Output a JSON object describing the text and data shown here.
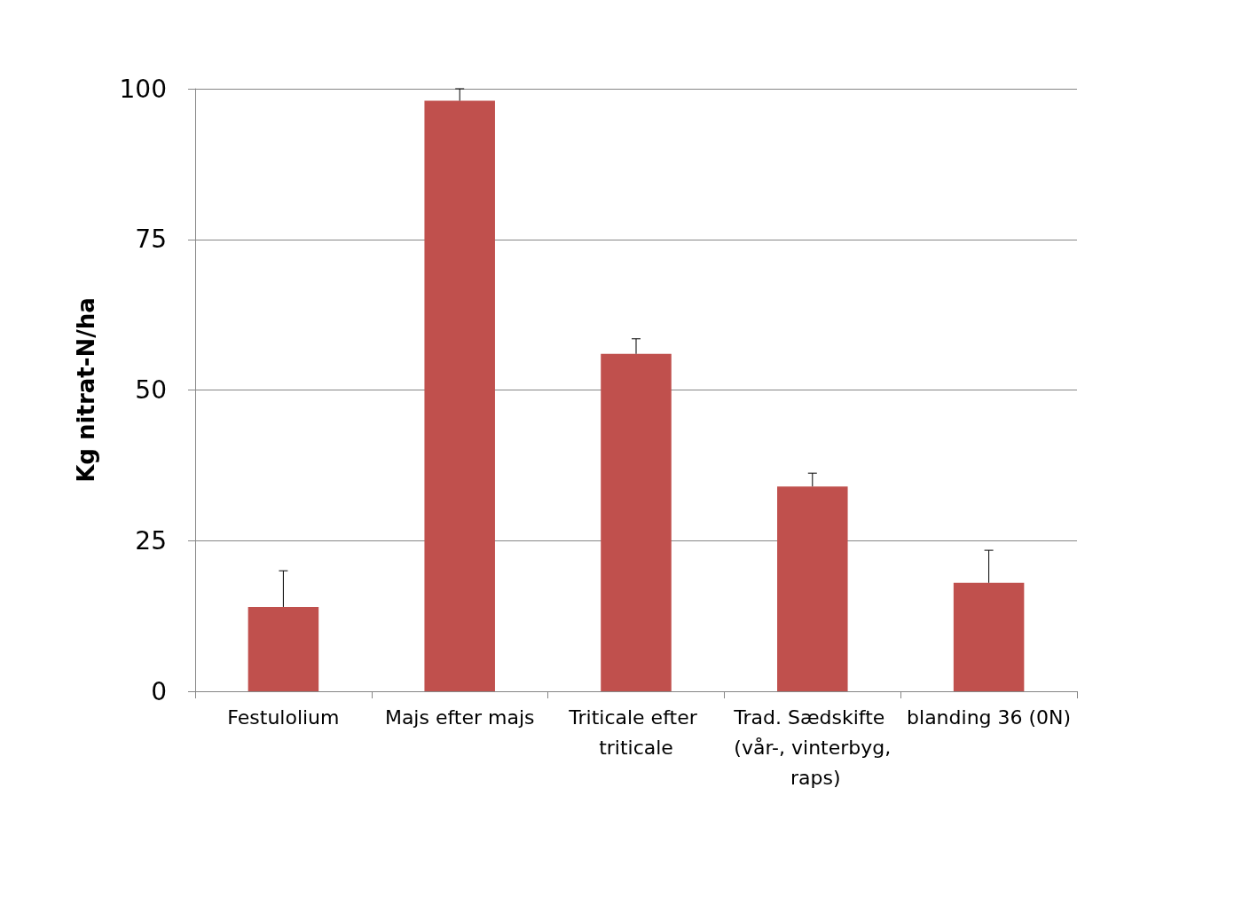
{
  "chart_data": {
    "type": "bar",
    "ylabel": "Kg nitrat-N/ha",
    "categories": [
      "Festulolium",
      "Majs efter majs",
      "Triticale efter triticale",
      "Trad. Sædskifte (vår-, vinterbyg, raps)",
      "blanding 36 (0N)"
    ],
    "values": [
      14,
      98,
      56,
      34,
      18
    ],
    "errors": [
      [
        14,
        20
      ],
      [
        98,
        100
      ],
      [
        56,
        58.5
      ],
      [
        34,
        36.2
      ],
      [
        18,
        23.4
      ]
    ],
    "color": "#c0504d",
    "ylim": [
      0,
      100
    ],
    "yticks": [
      0,
      25,
      50,
      75,
      100
    ],
    "grid": "y"
  }
}
